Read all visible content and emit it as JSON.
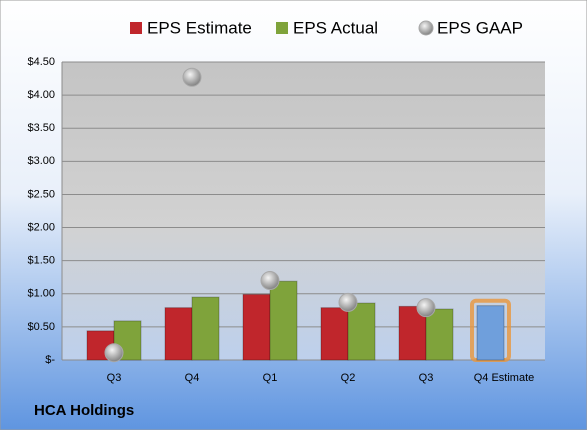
{
  "chart_data": {
    "type": "bar",
    "title": "HCA Holdings",
    "categories": [
      "Q3",
      "Q4",
      "Q1",
      "Q2",
      "Q3",
      "Q4 Estimate"
    ],
    "series": [
      {
        "name": "EPS Estimate",
        "color": "#c0262c",
        "type": "bar",
        "point_colors": [
          "#c0262c",
          "#c0262c",
          "#c0262c",
          "#c0262c",
          "#c0262c",
          "#6f9fdc"
        ],
        "point_outlines": [
          null,
          null,
          null,
          null,
          null,
          "#e8963c"
        ],
        "values": [
          0.44,
          0.79,
          0.99,
          0.79,
          0.81,
          0.82
        ]
      },
      {
        "name": "EPS Actual",
        "color": "#7fa33b",
        "type": "bar",
        "values": [
          0.59,
          0.95,
          1.19,
          0.86,
          0.77,
          null
        ]
      },
      {
        "name": "EPS GAAP",
        "color": "#a8a8a8",
        "type": "scatter",
        "values": [
          0.11,
          4.27,
          1.2,
          0.87,
          0.79,
          null
        ]
      }
    ],
    "ylim": [
      0,
      4.5
    ],
    "yticks": [
      {
        "value": 0,
        "label": "$-"
      },
      {
        "value": 0.5,
        "label": "$0.50"
      },
      {
        "value": 1,
        "label": "$1.00"
      },
      {
        "value": 1.5,
        "label": "$1.50"
      },
      {
        "value": 2,
        "label": "$2.00"
      },
      {
        "value": 2.5,
        "label": "$2.50"
      },
      {
        "value": 3,
        "label": "$3.00"
      },
      {
        "value": 3.5,
        "label": "$3.50"
      },
      {
        "value": 4,
        "label": "$4.00"
      },
      {
        "value": 4.5,
        "label": "$4.50"
      }
    ],
    "grid": true
  }
}
